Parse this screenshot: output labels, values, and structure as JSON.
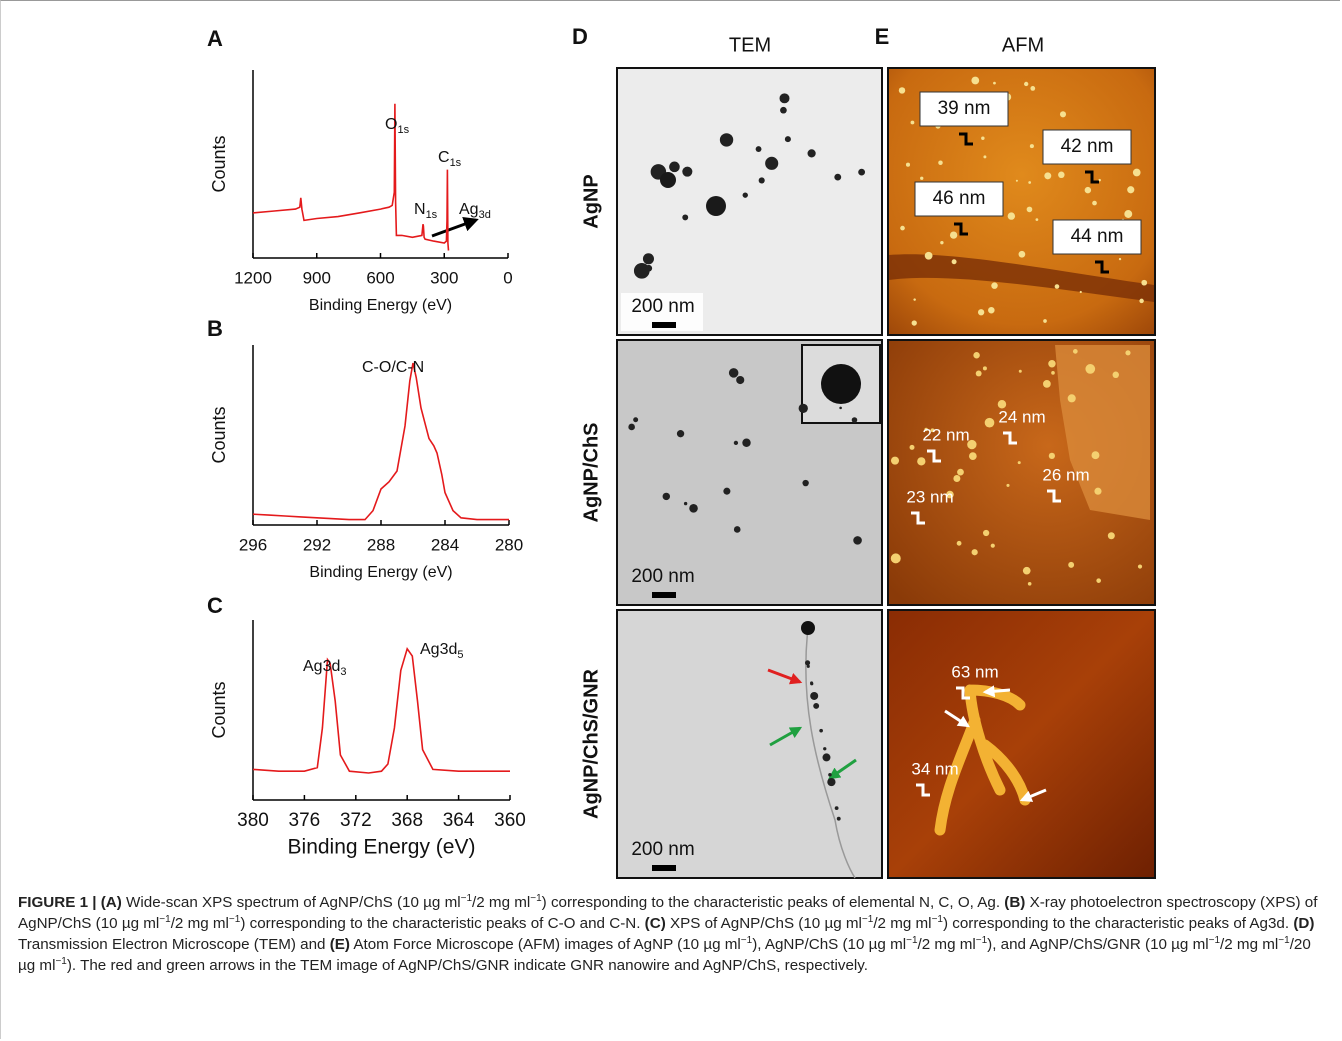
{
  "chart_data": [
    {
      "type": "line",
      "panel": "A",
      "xlabel": "Binding Energy (eV)",
      "ylabel": "Counts",
      "color": "#e41a1c",
      "xlim": [
        1200,
        0
      ],
      "xticks": [
        1200,
        900,
        600,
        300,
        0
      ],
      "ylim": [
        0,
        100
      ],
      "x": [
        1200,
        1100,
        1000,
        980,
        975,
        970,
        960,
        900,
        800,
        700,
        600,
        560,
        545,
        535,
        532,
        529,
        525,
        500,
        450,
        405,
        400,
        398,
        395,
        390,
        350,
        300,
        290,
        287,
        285,
        283,
        280
      ],
      "values": [
        24,
        25,
        26,
        27,
        32,
        26,
        20,
        21,
        22,
        24,
        26,
        27,
        28,
        35,
        82,
        30,
        12,
        12,
        11,
        12,
        18,
        17,
        11,
        10,
        9,
        8,
        9,
        20,
        47,
        8,
        4
      ],
      "annotations": [
        {
          "text": "O",
          "sub": "1s"
        },
        {
          "text": "C",
          "sub": "1s"
        },
        {
          "text": "N",
          "sub": "1s"
        },
        {
          "text": "Ag",
          "sub": "3d"
        }
      ]
    },
    {
      "type": "line",
      "panel": "B",
      "xlabel": "Binding Energy (eV)",
      "ylabel": "Counts",
      "color": "#e41a1c",
      "xlim": [
        296,
        280
      ],
      "xticks": [
        296,
        292,
        288,
        284,
        280
      ],
      "ylim": [
        0,
        100
      ],
      "x": [
        296,
        295,
        294,
        293,
        292,
        291,
        290,
        289,
        288.5,
        288,
        287.5,
        287,
        286.5,
        286.2,
        286,
        285.8,
        285.5,
        285,
        284.7,
        284.5,
        284.2,
        284,
        283.5,
        283,
        282,
        281,
        280
      ],
      "values": [
        6,
        5.5,
        5,
        4.5,
        4,
        3.5,
        3,
        3,
        8,
        20,
        24,
        30,
        55,
        80,
        90,
        82,
        65,
        48,
        44,
        40,
        28,
        18,
        8,
        4,
        3,
        3,
        3
      ],
      "annotations": [
        {
          "text": "C-O/C-N"
        }
      ]
    },
    {
      "type": "line",
      "panel": "C",
      "xlabel": "Binding Energy (eV)",
      "ylabel": "Counts",
      "color": "#e41a1c",
      "xlim": [
        380,
        360
      ],
      "xticks": [
        380,
        376,
        372,
        368,
        364,
        360
      ],
      "ylim": [
        0,
        100
      ],
      "x": [
        380,
        378,
        376,
        375,
        374.6,
        374.2,
        374,
        373.6,
        373.2,
        372.5,
        371,
        370,
        369.5,
        369,
        368.5,
        368,
        367.6,
        367.2,
        366.8,
        366,
        364,
        362,
        360
      ],
      "values": [
        17,
        16,
        16,
        18,
        40,
        78,
        76,
        55,
        25,
        16,
        15,
        16,
        20,
        40,
        72,
        84,
        80,
        55,
        28,
        17,
        16,
        16,
        16
      ],
      "annotations": [
        {
          "text": "Ag3d",
          "sub": "3"
        },
        {
          "text": "Ag3d",
          "sub": "5"
        }
      ]
    }
  ],
  "panel_labels": {
    "d": "D",
    "e": "E"
  },
  "column_headers": {
    "tem": "TEM",
    "afm": "AFM"
  },
  "rows": [
    {
      "label": "AgNP",
      "scale_bar": "200 nm",
      "afm_labels": [
        "39 nm",
        "42 nm",
        "46 nm",
        "44 nm"
      ]
    },
    {
      "label": "AgNP/ChS",
      "scale_bar": "200 nm",
      "afm_labels": [
        "22 nm",
        "24 nm",
        "26 nm",
        "23 nm"
      ]
    },
    {
      "label": "AgNP/ChS/GNR",
      "scale_bar": "200 nm",
      "afm_labels": [
        "63 nm",
        "34 nm"
      ]
    }
  ],
  "caption": {
    "runs": [
      {
        "style": "bold",
        "text": "FIGURE 1 | (A)"
      },
      {
        "style": "normal",
        "text": " Wide-scan XPS spectrum of AgNP/ChS (10 µg ml"
      },
      {
        "style": "sup",
        "text": "−1"
      },
      {
        "style": "normal",
        "text": "/2 mg ml"
      },
      {
        "style": "sup",
        "text": "−1"
      },
      {
        "style": "normal",
        "text": ") corresponding to the characteristic peaks of elemental N, C, O, Ag. "
      },
      {
        "style": "bold",
        "text": "(B)"
      },
      {
        "style": "normal",
        "text": " X-ray photoelectron spectroscopy (XPS) of AgNP/ChS (10 µg ml"
      },
      {
        "style": "sup",
        "text": "−1"
      },
      {
        "style": "normal",
        "text": "/2 mg ml"
      },
      {
        "style": "sup",
        "text": "−1"
      },
      {
        "style": "normal",
        "text": ") corresponding to the characteristic peaks of C-O and C-N. "
      },
      {
        "style": "bold",
        "text": "(C)"
      },
      {
        "style": "normal",
        "text": " XPS of AgNP/ChS (10 µg ml"
      },
      {
        "style": "sup",
        "text": "−1"
      },
      {
        "style": "normal",
        "text": "/2 mg ml"
      },
      {
        "style": "sup",
        "text": "−1"
      },
      {
        "style": "normal",
        "text": ") corresponding to the characteristic peaks of Ag3d. "
      },
      {
        "style": "bold",
        "text": "(D)"
      },
      {
        "style": "normal",
        "text": " Transmission Electron Microscope (TEM) and "
      },
      {
        "style": "bold",
        "text": "(E)"
      },
      {
        "style": "normal",
        "text": " Atom Force Microscope (AFM) images of AgNP (10 µg ml"
      },
      {
        "style": "sup",
        "text": "−1"
      },
      {
        "style": "normal",
        "text": "), AgNP/ChS (10 µg ml"
      },
      {
        "style": "sup",
        "text": "−1"
      },
      {
        "style": "normal",
        "text": "/2 mg ml"
      },
      {
        "style": "sup",
        "text": "−1"
      },
      {
        "style": "normal",
        "text": "), and AgNP/ChS/GNR (10 µg ml"
      },
      {
        "style": "sup",
        "text": "−1"
      },
      {
        "style": "normal",
        "text": "/2 mg ml"
      },
      {
        "style": "sup",
        "text": "−1"
      },
      {
        "style": "normal",
        "text": "/20 µg ml"
      },
      {
        "style": "sup",
        "text": "−1"
      },
      {
        "style": "normal",
        "text": "). The red and green arrows in the TEM image of AgNP/ChS/GNR indicate GNR nanowire and AgNP/ChS, respectively."
      }
    ]
  }
}
